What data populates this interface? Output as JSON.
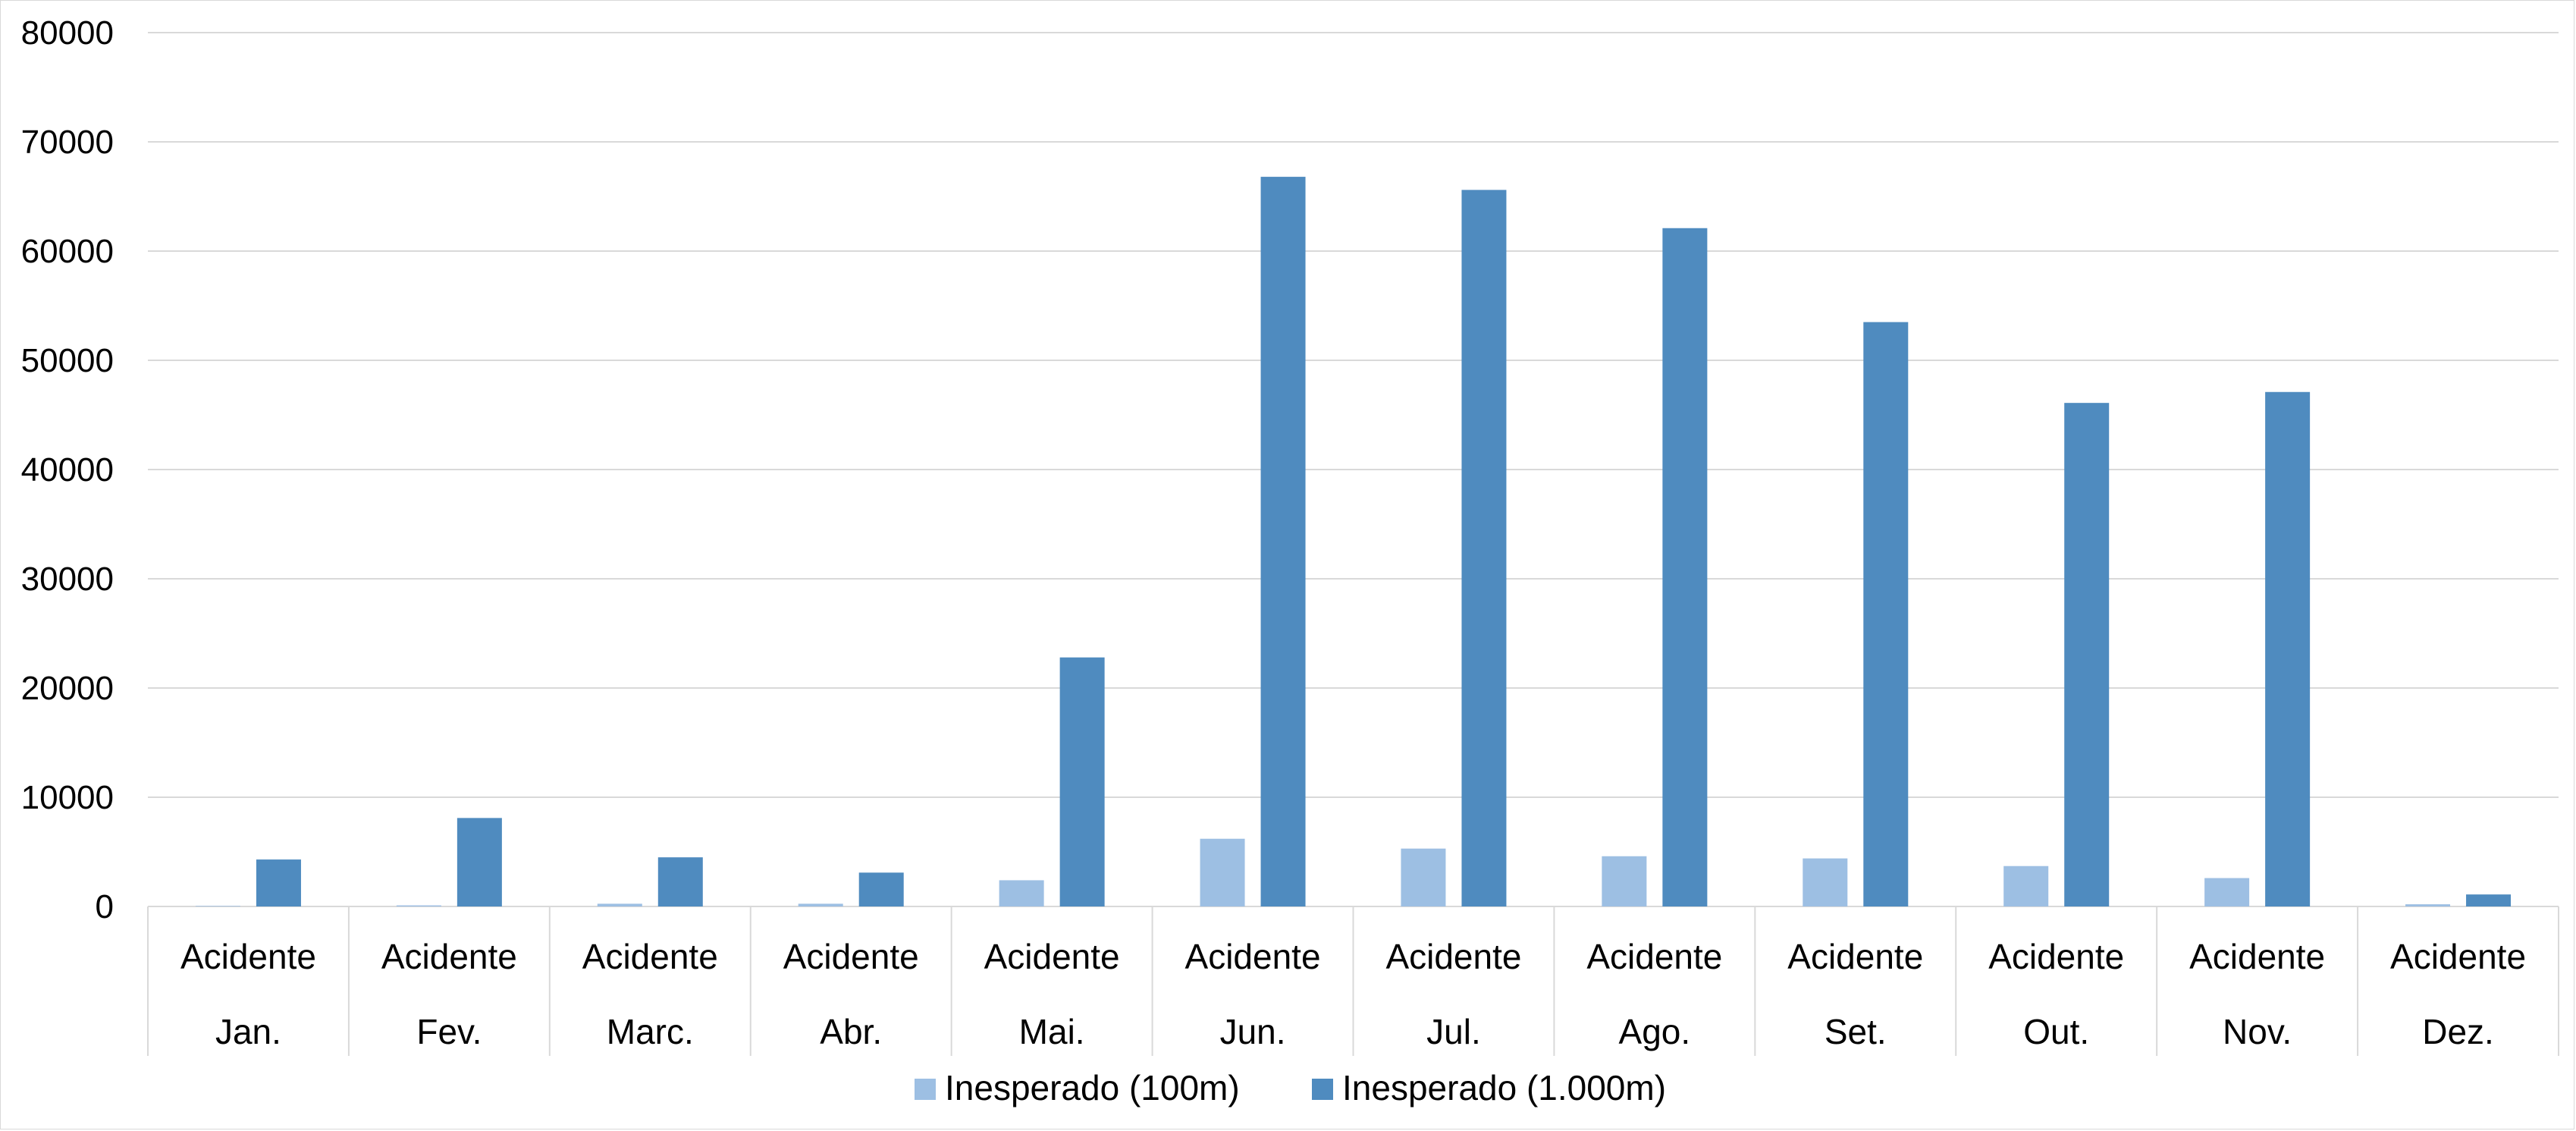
{
  "chart_data": {
    "type": "bar",
    "title": "",
    "xlabel": "",
    "ylabel": "",
    "ylim": [
      0,
      80000
    ],
    "yticks": [
      0,
      10000,
      20000,
      30000,
      40000,
      50000,
      60000,
      70000,
      80000
    ],
    "grid": true,
    "legend_position": "bottom",
    "category_top_label": "Acidente",
    "categories": [
      "Jan.",
      "Fev.",
      "Marc.",
      "Abr.",
      "Mai.",
      "Jun.",
      "Jul.",
      "Ago.",
      "Set.",
      "Out.",
      "Nov.",
      "Dez."
    ],
    "series": [
      {
        "name": "Inesperado (100m)",
        "color": "#9dbfe3",
        "values": [
          50,
          100,
          250,
          250,
          2400,
          6200,
          5300,
          4600,
          4400,
          3700,
          2600,
          200
        ]
      },
      {
        "name": "Inesperado (1.000m)",
        "color": "#4f8bbf",
        "values": [
          4300,
          8100,
          4500,
          3100,
          22800,
          66800,
          65600,
          62100,
          53500,
          46100,
          47100,
          1100
        ]
      }
    ]
  }
}
